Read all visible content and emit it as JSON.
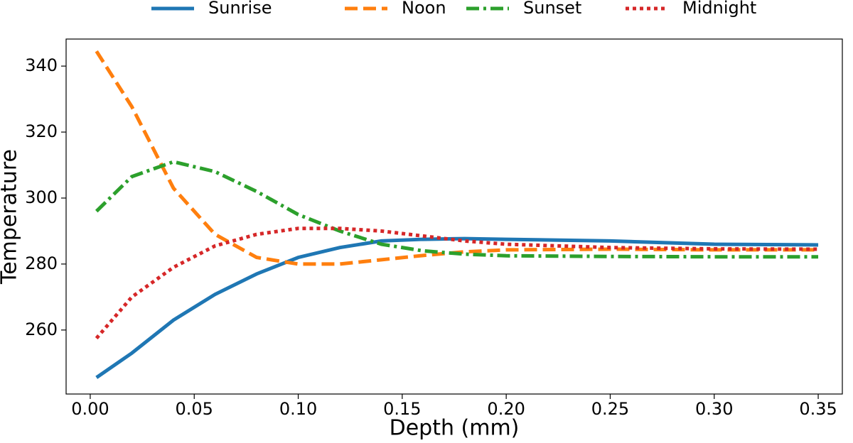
{
  "chart_data": {
    "type": "line",
    "xlabel": "Depth (mm)",
    "ylabel": "Temperature",
    "x": [
      0.003,
      0.02,
      0.04,
      0.06,
      0.08,
      0.1,
      0.12,
      0.14,
      0.16,
      0.18,
      0.2,
      0.25,
      0.3,
      0.35
    ],
    "series": [
      {
        "name": "Sunrise",
        "color": "#1f77b4",
        "style": "solid",
        "values": [
          245.6,
          253,
          263,
          270.8,
          277,
          282,
          285,
          287,
          287.5,
          287.7,
          287.5,
          287,
          286,
          285.8
        ]
      },
      {
        "name": "Noon",
        "color": "#ff7f0e",
        "style": "dashed",
        "values": [
          344.5,
          327.7,
          303,
          289,
          282,
          280,
          280,
          281.3,
          282.6,
          283.7,
          284.3,
          284.5,
          284.3,
          284.3
        ]
      },
      {
        "name": "Sunset",
        "color": "#2ca02c",
        "style": "dashdot",
        "values": [
          296,
          306.5,
          311,
          308,
          302,
          295,
          290,
          286,
          284,
          283,
          282.5,
          282.3,
          282.2,
          282.2
        ]
      },
      {
        "name": "Midnight",
        "color": "#d62728",
        "style": "dotted",
        "values": [
          257.5,
          270,
          279,
          285.5,
          289,
          290.8,
          290.8,
          290,
          288.5,
          287,
          286,
          285,
          284.6,
          284.5
        ]
      }
    ],
    "xlim": [
      -0.0116,
      0.3616
    ],
    "xticks": [
      {
        "value": 0,
        "label": "0.00"
      },
      {
        "value": 0.05,
        "label": "0.05"
      },
      {
        "value": 0.1,
        "label": "0.10"
      },
      {
        "value": 0.15,
        "label": "0.15"
      },
      {
        "value": 0.2,
        "label": "0.20"
      },
      {
        "value": 0.25,
        "label": "0.25"
      },
      {
        "value": 0.3,
        "label": "0.30"
      },
      {
        "value": 0.35,
        "label": "0.35"
      }
    ],
    "ylim": [
      240.6,
      348.2
    ],
    "yticks": [
      260,
      280,
      300,
      320,
      340
    ],
    "legend": "top"
  }
}
